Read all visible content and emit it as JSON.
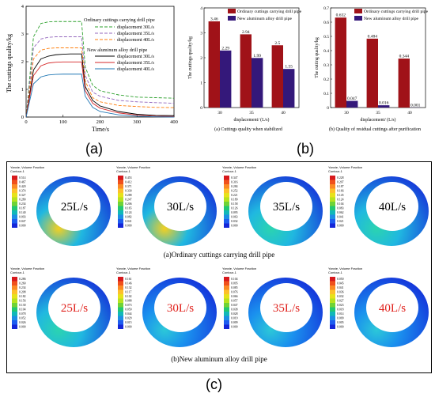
{
  "panels": {
    "a": "(a)",
    "b": "(b)",
    "c": "(c)"
  },
  "chart_data": [
    {
      "type": "line",
      "xlabel": "Time/s",
      "ylabel": "The cuttings quality/kg",
      "xlim": [
        0,
        400
      ],
      "ylim": [
        0,
        4
      ],
      "x_ticks": [
        0,
        100,
        200,
        300,
        400
      ],
      "y_ticks": [
        0,
        1,
        2,
        3,
        4
      ],
      "group_labels": {
        "ordinary": "Ordinary cuttings carrying drill pipe",
        "aluminum": "New aluminum alloy drill pipe"
      },
      "series": [
        {
          "name": "displacement 30L/s",
          "group": "ordinary",
          "color": "#2ca02c",
          "dash": "4,2",
          "x": [
            0,
            20,
            40,
            60,
            80,
            100,
            120,
            140,
            150,
            160,
            180,
            200,
            250,
            300,
            350,
            400
          ],
          "y": [
            0,
            2.9,
            3.38,
            3.44,
            3.45,
            3.45,
            3.45,
            3.45,
            3.45,
            1.8,
            1.15,
            0.95,
            0.8,
            0.72,
            0.7,
            0.68
          ]
        },
        {
          "name": "displacement 35L/s",
          "group": "ordinary",
          "color": "#9467bd",
          "dash": "4,2",
          "x": [
            0,
            20,
            40,
            60,
            80,
            100,
            120,
            140,
            150,
            160,
            180,
            200,
            250,
            300,
            350,
            400
          ],
          "y": [
            0,
            2.5,
            2.82,
            2.88,
            2.9,
            2.9,
            2.9,
            2.9,
            2.9,
            1.5,
            0.9,
            0.75,
            0.6,
            0.55,
            0.52,
            0.5
          ]
        },
        {
          "name": "displacement 40L/s",
          "group": "ordinary",
          "color": "#ff7f0e",
          "dash": "4,2",
          "x": [
            0,
            20,
            40,
            60,
            80,
            100,
            120,
            140,
            150,
            160,
            180,
            200,
            250,
            300,
            350,
            400
          ],
          "y": [
            0,
            2.1,
            2.42,
            2.48,
            2.5,
            2.5,
            2.5,
            2.5,
            2.5,
            1.3,
            0.7,
            0.55,
            0.42,
            0.38,
            0.35,
            0.34
          ]
        },
        {
          "name": "displacement 30L/s",
          "group": "aluminum",
          "color": "#000000",
          "dash": "",
          "x": [
            0,
            20,
            40,
            60,
            80,
            100,
            120,
            140,
            150,
            160,
            180,
            200,
            250,
            300,
            350,
            400
          ],
          "y": [
            0,
            1.7,
            2.1,
            2.2,
            2.25,
            2.27,
            2.28,
            2.28,
            2.28,
            1.1,
            0.6,
            0.4,
            0.2,
            0.1,
            0.06,
            0.05
          ]
        },
        {
          "name": "displacement 35L/s",
          "group": "aluminum",
          "color": "#d62728",
          "dash": "",
          "x": [
            0,
            20,
            40,
            60,
            80,
            100,
            120,
            140,
            150,
            160,
            180,
            200,
            250,
            300,
            350,
            400
          ],
          "y": [
            0,
            1.5,
            1.85,
            1.95,
            1.98,
            1.99,
            1.99,
            1.99,
            1.99,
            0.95,
            0.5,
            0.32,
            0.15,
            0.07,
            0.03,
            0.02
          ]
        },
        {
          "name": "displacement 40L/s",
          "group": "aluminum",
          "color": "#1f77b4",
          "dash": "",
          "x": [
            0,
            20,
            40,
            60,
            80,
            100,
            120,
            140,
            150,
            160,
            180,
            200,
            250,
            300,
            350,
            400
          ],
          "y": [
            0,
            1.2,
            1.45,
            1.52,
            1.54,
            1.55,
            1.55,
            1.55,
            1.55,
            0.75,
            0.35,
            0.2,
            0.08,
            0.03,
            0.01,
            0.0
          ]
        }
      ]
    },
    {
      "type": "bar",
      "title": "(a) Cuttings quality when stabilized",
      "xlabel": "displacement/ (L/s)",
      "ylabel": "The cuttings quality/kg",
      "categories": [
        "30",
        "35",
        "40"
      ],
      "ylim": [
        0,
        4
      ],
      "y_ticks": [
        0,
        1,
        2,
        3,
        4
      ],
      "series": [
        {
          "name": "Ordinary cuttings carrying drill pipe",
          "color": "#a01218",
          "values": [
            3.46,
            2.94,
            2.5
          ],
          "labels": [
            "3.46",
            "2.94",
            "2.5"
          ]
        },
        {
          "name": "New aluminum alloy drill pipe",
          "color": "#34187a",
          "values": [
            2.29,
            1.99,
            1.55
          ],
          "labels": [
            "2.29",
            "1.99",
            "1.55"
          ]
        }
      ]
    },
    {
      "type": "bar",
      "title": "(b) Quality of residual cuttings after purification",
      "xlabel": "displacement/ (L/s)",
      "ylabel": "The cutting quality/kg",
      "categories": [
        "30",
        "35",
        "40"
      ],
      "ylim": [
        0,
        0.7
      ],
      "y_ticks": [
        0,
        0.1,
        0.2,
        0.3,
        0.4,
        0.5,
        0.6,
        0.7
      ],
      "series": [
        {
          "name": "Ordinary cuttings carrying drill pipe",
          "color": "#a01218",
          "values": [
            0.632,
            0.484,
            0.344
          ],
          "labels": [
            "0.632",
            "0.484",
            "0.344"
          ]
        },
        {
          "name": "New aluminum alloy drill pipe",
          "color": "#34187a",
          "values": [
            0.047,
            0.016,
            0.001
          ],
          "labels": [
            "0.047",
            "0.016",
            "0.001"
          ]
        }
      ]
    }
  ],
  "contours": {
    "header": "Yanxie, Volume Fraction\nContour-1",
    "rows": [
      {
        "caption": "(a)Ordinary cuttings carrying drill pipe",
        "label_color": "#000000",
        "items": [
          {
            "label": "25L/s",
            "max_fraction": 1.0,
            "scale": [
              "0.514",
              "0.467",
              "0.420",
              "0.374",
              "0.327",
              "0.280",
              "0.234",
              "0.187",
              "0.140",
              "0.093",
              "0.047",
              "0.000"
            ]
          },
          {
            "label": "30L/s",
            "max_fraction": 0.9,
            "scale": [
              "0.453",
              "0.412",
              "0.371",
              "0.330",
              "0.288",
              "0.247",
              "0.206",
              "0.165",
              "0.124",
              "0.082",
              "0.041",
              "0.000"
            ]
          },
          {
            "label": "35L/s",
            "max_fraction": 0.8,
            "scale": [
              "0.347",
              "0.316",
              "0.284",
              "0.252",
              "0.221",
              "0.189",
              "0.158",
              "0.126",
              "0.095",
              "0.063",
              "0.032",
              "0.000"
            ]
          },
          {
            "label": "40L/s",
            "max_fraction": 0.7,
            "scale": [
              "0.228",
              "0.207",
              "0.187",
              "0.166",
              "0.145",
              "0.124",
              "0.104",
              "0.083",
              "0.062",
              "0.041",
              "0.021",
              "0.000"
            ]
          }
        ]
      },
      {
        "caption": "(b)New aluminum alloy drill pipe",
        "label_color": "#e0201b",
        "items": [
          {
            "label": "25L/s",
            "max_fraction": 0.6,
            "scale": [
              "0.286",
              "0.260",
              "0.234",
              "0.208",
              "0.182",
              "0.156",
              "0.130",
              "0.104",
              "0.078",
              "0.052",
              "0.026",
              "0.000"
            ]
          },
          {
            "label": "30L/s",
            "max_fraction": 0.5,
            "scale": [
              "0.161",
              "0.146",
              "0.132",
              "0.117",
              "0.102",
              "0.088",
              "0.073",
              "0.059",
              "0.044",
              "0.029",
              "0.015",
              "0.000"
            ]
          },
          {
            "label": "35L/s",
            "max_fraction": 0.4,
            "scale": [
              "0.104",
              "0.095",
              "0.085",
              "0.076",
              "0.066",
              "0.057",
              "0.047",
              "0.038",
              "0.028",
              "0.019",
              "0.009",
              "0.000"
            ]
          },
          {
            "label": "40L/s",
            "max_fraction": 0.3,
            "scale": [
              "0.050",
              "0.045",
              "0.041",
              "0.036",
              "0.032",
              "0.027",
              "0.023",
              "0.018",
              "0.014",
              "0.009",
              "0.005",
              "0.000"
            ]
          }
        ]
      }
    ]
  }
}
